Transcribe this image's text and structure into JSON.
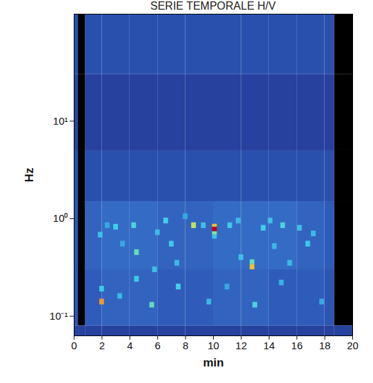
{
  "chart_data": {
    "type": "heatmap",
    "title": "SERIE TEMPORALE H/V",
    "x_label": "min",
    "y_label": "Hz",
    "xlim": [
      0,
      20
    ],
    "xticks": [
      0,
      2,
      4,
      6,
      8,
      10,
      12,
      14,
      16,
      18,
      20
    ],
    "ylim": [
      0.063,
      125
    ],
    "yticks": [
      {
        "value": 0.1,
        "label": "10⁻¹"
      },
      {
        "value": 1,
        "label": "10⁰"
      },
      {
        "value": 10,
        "label": "10¹"
      }
    ],
    "log": "y",
    "color_range": [
      1,
      6
    ],
    "cells": {
      "x_edges": [
        0,
        0.3,
        0.8,
        2,
        4,
        6,
        8,
        10,
        12,
        14,
        16,
        18,
        18.7,
        20
      ],
      "y_edges": [
        0.063,
        0.08,
        0.3,
        1.5,
        5,
        30,
        125
      ],
      "values": [
        [
          1.6,
          1.6,
          1.6,
          1.6,
          1.6,
          1.6,
          1.6,
          1.6,
          1.6,
          1.6,
          1.6,
          1.6,
          1.6
        ],
        [
          2.0,
          null,
          2.1,
          2.2,
          2.2,
          2.1,
          2.1,
          2.2,
          2.2,
          2.1,
          2.1,
          2.0,
          null
        ],
        [
          2.0,
          null,
          2.2,
          2.3,
          2.3,
          2.2,
          2.2,
          2.3,
          2.3,
          2.3,
          2.2,
          2.1,
          null
        ],
        [
          1.9,
          null,
          1.9,
          1.9,
          1.9,
          1.9,
          1.9,
          1.9,
          1.9,
          1.9,
          1.9,
          1.9,
          null
        ],
        [
          1.7,
          null,
          1.6,
          1.6,
          1.6,
          1.6,
          1.6,
          1.6,
          1.6,
          1.6,
          1.6,
          1.6,
          null
        ],
        [
          1.9,
          null,
          1.9,
          1.9,
          1.9,
          1.9,
          1.9,
          1.9,
          1.9,
          1.9,
          1.9,
          1.9,
          null
        ]
      ]
    },
    "spots": [
      [
        1.83,
        2.17,
        0.131,
        0.15,
        5.2
      ],
      [
        1.83,
        2.17,
        0.178,
        0.203,
        3.4
      ],
      [
        1.73,
        2.07,
        0.636,
        0.728,
        3.3
      ],
      [
        2.23,
        2.57,
        0.795,
        0.91,
        3.0
      ],
      [
        2.83,
        3.17,
        0.767,
        0.877,
        3.5
      ],
      [
        3.33,
        3.67,
        0.514,
        0.589,
        3.0
      ],
      [
        3.13,
        3.47,
        0.15,
        0.171,
        3.2
      ],
      [
        4.13,
        4.47,
        0.795,
        0.91,
        3.6
      ],
      [
        4.33,
        4.67,
        0.421,
        0.482,
        3.8
      ],
      [
        4.33,
        4.67,
        0.224,
        0.257,
        3.4
      ],
      [
        5.43,
        5.77,
        0.122,
        0.139,
        3.8
      ],
      [
        5.63,
        5.97,
        0.281,
        0.321,
        3.3
      ],
      [
        5.83,
        6.17,
        0.673,
        0.77,
        3.2
      ],
      [
        6.43,
        6.77,
        0.888,
        1.017,
        3.5
      ],
      [
        6.83,
        7.17,
        0.514,
        0.589,
        3.4
      ],
      [
        7.33,
        7.67,
        0.187,
        0.214,
        3.5
      ],
      [
        7.23,
        7.57,
        0.327,
        0.375,
        3.2
      ],
      [
        7.83,
        8.17,
        0.982,
        1.124,
        3.0
      ],
      [
        8.43,
        8.77,
        0.795,
        0.91,
        4.4
      ],
      [
        9.13,
        9.47,
        0.795,
        0.91,
        3.3
      ],
      [
        9.53,
        9.87,
        0.131,
        0.15,
        3.2
      ],
      [
        9.93,
        10.27,
        0.62,
        0.68,
        3.3
      ],
      [
        9.93,
        10.27,
        0.68,
        0.74,
        4.0
      ],
      [
        9.93,
        10.27,
        0.74,
        0.82,
        6.0
      ],
      [
        9.93,
        10.27,
        0.82,
        0.88,
        5.0
      ],
      [
        10.83,
        11.17,
        0.187,
        0.214,
        3.0
      ],
      [
        11.03,
        11.37,
        0.795,
        0.91,
        3.4
      ],
      [
        11.63,
        11.97,
        0.888,
        1.017,
        3.2
      ],
      [
        11.83,
        12.17,
        0.374,
        0.428,
        3.3
      ],
      [
        12.63,
        12.97,
        0.3,
        0.34,
        5.0
      ],
      [
        12.63,
        12.97,
        0.34,
        0.38,
        3.8
      ],
      [
        12.83,
        13.17,
        0.122,
        0.139,
        3.6
      ],
      [
        13.43,
        13.77,
        0.748,
        0.856,
        3.5
      ],
      [
        13.93,
        14.27,
        0.888,
        1.017,
        3.3
      ],
      [
        14.23,
        14.57,
        0.486,
        0.556,
        3.2
      ],
      [
        14.73,
        15.07,
        0.206,
        0.235,
        3.1
      ],
      [
        14.83,
        15.17,
        0.795,
        0.91,
        3.6
      ],
      [
        15.33,
        15.67,
        0.327,
        0.375,
        3.2
      ],
      [
        16.03,
        16.37,
        0.748,
        0.856,
        3.3
      ],
      [
        16.63,
        16.97,
        0.514,
        0.589,
        3.4
      ],
      [
        17.03,
        17.37,
        0.655,
        0.749,
        3.2
      ],
      [
        17.63,
        17.97,
        0.131,
        0.15,
        3.0
      ]
    ]
  }
}
